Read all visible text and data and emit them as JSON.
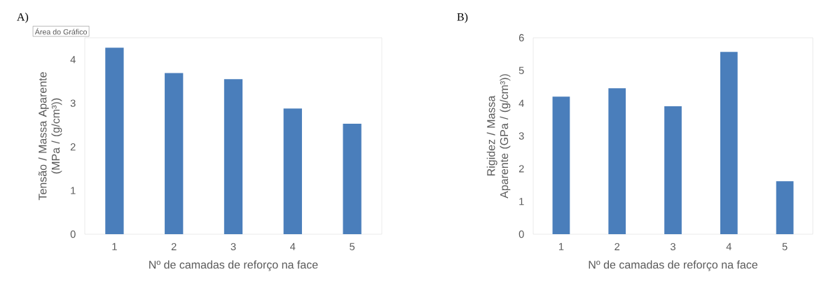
{
  "chart_data": [
    {
      "type": "bar",
      "title": "A)",
      "annotations": [
        "Área do Gráfico"
      ],
      "categories": [
        "1",
        "2",
        "3",
        "4",
        "5"
      ],
      "values": [
        4.27,
        3.69,
        3.55,
        2.88,
        2.53
      ],
      "color": "#4a7ebb",
      "xlabel": "Nº de camadas de reforço na face",
      "ylabel": "Tensão / Massa Aparente (MPa / (g/cm³))",
      "ylim": [
        0,
        4.5
      ],
      "yticks": [
        0,
        1,
        2,
        3,
        4
      ],
      "grid": false
    },
    {
      "type": "bar",
      "title": "B)",
      "categories": [
        "1",
        "2",
        "3",
        "4",
        "5"
      ],
      "values": [
        4.2,
        4.46,
        3.91,
        5.57,
        1.62
      ],
      "color": "#4a7ebb",
      "xlabel": "Nº de camadas de reforço na face",
      "ylabel": "Rigidez / Massa Aparente (GPa / (g/cm³))",
      "ylim": [
        0,
        6
      ],
      "yticks": [
        0,
        1,
        2,
        3,
        4,
        5,
        6
      ],
      "grid": false
    }
  ]
}
